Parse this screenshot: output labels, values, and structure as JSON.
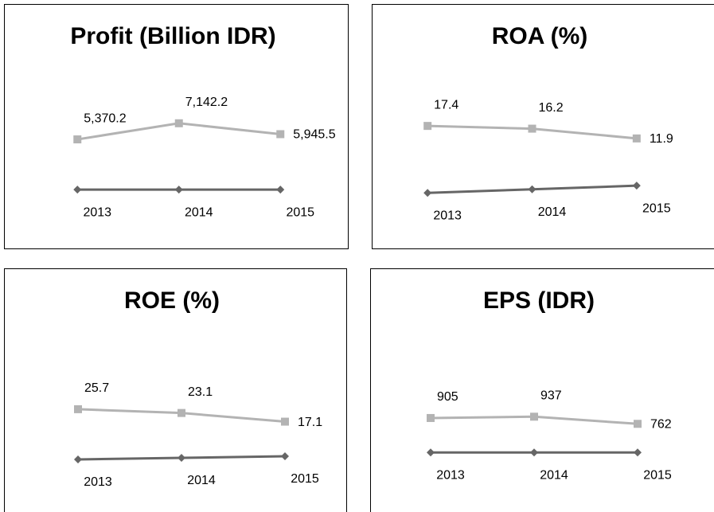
{
  "chart_data": [
    {
      "type": "line",
      "title": "Profit (Billion IDR)",
      "series": [
        {
          "color": "#b3b3b3",
          "marker": "square",
          "values": [
            5370.2,
            7142.2,
            5945.5
          ],
          "value_labels": [
            "5,370.2",
            "7,142.2",
            "5,945.5"
          ]
        },
        {
          "color": "#666666",
          "marker": "diamond",
          "axis": "y2",
          "values": [
            2013,
            2014,
            2015
          ]
        }
      ],
      "ylim": [
        -2500,
        15000
      ],
      "y2lim": [
        0,
        15000
      ]
    },
    {
      "type": "line",
      "title": "ROA (%)",
      "series": [
        {
          "color": "#b3b3b3",
          "marker": "square",
          "values": [
            17.4,
            16.2,
            11.9
          ]
        },
        {
          "color": "#666666",
          "marker": "diamond",
          "axis": "y2",
          "values": [
            2013,
            2014,
            2015
          ]
        }
      ],
      "ylim": [
        -20,
        50
      ],
      "y2lim": [
        2008,
        2052
      ]
    },
    {
      "type": "line",
      "title": "ROE (%)",
      "series": [
        {
          "color": "#b3b3b3",
          "marker": "square",
          "values": [
            25.7,
            23.1,
            17.1
          ]
        },
        {
          "color": "#666666",
          "marker": "diamond",
          "axis": "y2",
          "values": [
            2013,
            2014,
            2015
          ]
        }
      ],
      "ylim": [
        -20,
        90
      ],
      "y2lim": [
        2003,
        2103
      ]
    },
    {
      "type": "line",
      "title": "EPS (IDR)",
      "series": [
        {
          "color": "#b3b3b3",
          "marker": "square",
          "values": [
            905,
            937,
            762
          ]
        },
        {
          "color": "#666666",
          "marker": "diamond",
          "axis": "y2",
          "values": [
            2013,
            2014,
            2015
          ]
        }
      ],
      "ylim": [
        -500,
        3400
      ],
      "y2lim": [
        0,
        14000
      ]
    }
  ]
}
